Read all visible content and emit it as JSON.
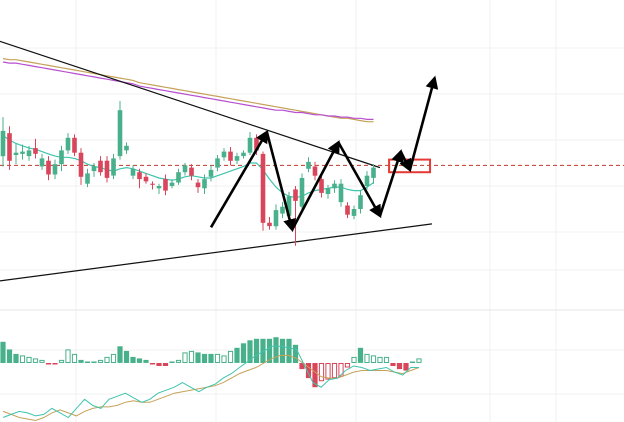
{
  "chart_data": [
    {
      "type": "candlestick",
      "title": "",
      "xlabel": "",
      "ylabel": "",
      "grid": true,
      "legend": "none",
      "colors": {
        "up": "#48b08a",
        "down": "#d9465b",
        "ma_fast": "#3fc4ae",
        "ma_slow_a": "#b64fd0",
        "ma_slow_b": "#c6a25a",
        "trendline": "#111111",
        "reference_line": "#c0392b",
        "annotation_box": "#e53935",
        "arrows": "#000000"
      },
      "candles": [
        {
          "o": -0.6,
          "c": 1.6,
          "h": 2.8,
          "l": -1.5
        },
        {
          "o": 1.4,
          "c": -1.0,
          "h": 2.0,
          "l": -1.8
        },
        {
          "o": -0.5,
          "c": -0.3,
          "h": 0.5,
          "l": -1.3
        },
        {
          "o": -0.4,
          "c": -0.2,
          "h": 0.4,
          "l": -0.9
        },
        {
          "o": -0.6,
          "c": -0.1,
          "h": 0.3,
          "l": -1.0
        },
        {
          "o": 0.1,
          "c": -0.4,
          "h": 0.9,
          "l": -0.8
        },
        {
          "o": -1.5,
          "c": -0.8,
          "h": -0.4,
          "l": -1.8
        },
        {
          "o": -1.0,
          "c": -2.2,
          "h": -0.6,
          "l": -2.7
        },
        {
          "o": -2.2,
          "c": -1.3,
          "h": -0.9,
          "l": -2.6
        },
        {
          "o": -1.3,
          "c": -0.1,
          "h": 0.3,
          "l": -1.9
        },
        {
          "o": -0.1,
          "c": 1.0,
          "h": 1.4,
          "l": -0.4
        },
        {
          "o": 1.0,
          "c": -0.3,
          "h": 1.3,
          "l": -0.6
        },
        {
          "o": -0.3,
          "c": -2.4,
          "h": 0.1,
          "l": -3.1
        },
        {
          "o": -3.0,
          "c": -2.1,
          "h": -1.7,
          "l": -3.3
        },
        {
          "o": -1.9,
          "c": -1.5,
          "h": -1.2,
          "l": -2.4
        },
        {
          "o": -1.0,
          "c": -2.0,
          "h": -0.6,
          "l": -2.3
        },
        {
          "o": -1.0,
          "c": -2.5,
          "h": -0.6,
          "l": -2.9
        },
        {
          "o": -2.3,
          "c": -0.8,
          "h": -0.4,
          "l": -2.6
        },
        {
          "o": -0.6,
          "c": 3.4,
          "h": 4.2,
          "l": -0.9
        },
        {
          "o": -0.1,
          "c": 0.3,
          "h": 0.6,
          "l": -0.4
        },
        {
          "o": -2.3,
          "c": -1.7,
          "h": -1.4,
          "l": -2.6
        },
        {
          "o": -2.0,
          "c": -2.6,
          "h": -1.7,
          "l": -3.4
        },
        {
          "o": -2.4,
          "c": -2.8,
          "h": -2.1,
          "l": -3.0
        },
        {
          "o": -3.0,
          "c": -3.1,
          "h": -2.8,
          "l": -3.5
        },
        {
          "o": -3.4,
          "c": -3.2,
          "h": -3.0,
          "l": -3.9
        },
        {
          "o": -2.6,
          "c": -3.6,
          "h": -2.2,
          "l": -4.0
        },
        {
          "o": -3.2,
          "c": -2.9,
          "h": -2.6,
          "l": -3.4
        },
        {
          "o": -2.9,
          "c": -2.0,
          "h": -1.7,
          "l": -3.1
        },
        {
          "o": -2.0,
          "c": -1.4,
          "h": -1.2,
          "l": -2.3
        },
        {
          "o": -1.6,
          "c": -2.3,
          "h": -1.3,
          "l": -2.7
        },
        {
          "o": -2.9,
          "c": -3.3,
          "h": -2.6,
          "l": -3.8
        },
        {
          "o": -3.4,
          "c": -2.6,
          "h": -2.2,
          "l": -3.9
        },
        {
          "o": -2.4,
          "c": -1.8,
          "h": -1.4,
          "l": -2.8
        },
        {
          "o": -1.6,
          "c": -0.8,
          "h": -0.5,
          "l": -1.9
        },
        {
          "o": -0.7,
          "c": -0.2,
          "h": 0.1,
          "l": -1.0
        },
        {
          "o": -0.2,
          "c": -1.0,
          "h": 0.2,
          "l": -1.4
        },
        {
          "o": -1.0,
          "c": -0.6,
          "h": -0.3,
          "l": -1.3
        },
        {
          "o": -0.6,
          "c": -0.3,
          "h": -0.1,
          "l": -0.8
        },
        {
          "o": -0.3,
          "c": 1.0,
          "h": 1.5,
          "l": -0.5
        },
        {
          "o": 1.0,
          "c": -0.1,
          "h": 1.3,
          "l": -0.5
        },
        {
          "o": -0.4,
          "c": -6.4,
          "h": -0.2,
          "l": -7.1
        },
        {
          "o": -6.4,
          "c": -6.7,
          "h": -5.9,
          "l": -7.0
        },
        {
          "o": -6.7,
          "c": -5.3,
          "h": -4.8,
          "l": -7.0
        },
        {
          "o": -5.6,
          "c": -5.0,
          "h": -4.6,
          "l": -6.0
        },
        {
          "o": -5.8,
          "c": -4.1,
          "h": -3.7,
          "l": -6.2
        },
        {
          "o": -3.5,
          "c": -4.5,
          "h": -3.2,
          "l": -8.4
        },
        {
          "o": -5.0,
          "c": -2.5,
          "h": -2.1,
          "l": -5.4
        },
        {
          "o": -1.7,
          "c": -1.1,
          "h": -0.7,
          "l": -2.0
        },
        {
          "o": -1.5,
          "c": -2.3,
          "h": -1.1,
          "l": -2.7
        },
        {
          "o": -2.6,
          "c": -3.8,
          "h": -2.3,
          "l": -4.2
        },
        {
          "o": -3.9,
          "c": -3.4,
          "h": -3.1,
          "l": -4.3
        },
        {
          "o": -3.4,
          "c": -3.0,
          "h": -2.7,
          "l": -3.8
        },
        {
          "o": -4.6,
          "c": -3.0,
          "h": -2.6,
          "l": -5.0
        },
        {
          "o": -4.9,
          "c": -5.7,
          "h": -4.6,
          "l": -6.0
        },
        {
          "o": -5.8,
          "c": -5.2,
          "h": -4.9,
          "l": -6.1
        },
        {
          "o": -5.2,
          "c": -4.0,
          "h": -3.6,
          "l": -5.6
        },
        {
          "o": -3.2,
          "c": -2.3,
          "h": -1.9,
          "l": -3.5
        },
        {
          "o": -2.5,
          "c": -1.6,
          "h": -1.3,
          "l": -3.0
        }
      ],
      "ma_fast": [
        1.2,
        0.8,
        0.5,
        0.3,
        0.1,
        0.0,
        -0.2,
        -0.4,
        -0.6,
        -0.7,
        -0.7,
        -0.8,
        -1.0,
        -1.3,
        -1.5,
        -1.6,
        -1.8,
        -1.9,
        -1.7,
        -1.6,
        -1.7,
        -1.9,
        -2.1,
        -2.3,
        -2.5,
        -2.6,
        -2.7,
        -2.6,
        -2.4,
        -2.3,
        -2.4,
        -2.5,
        -2.5,
        -2.3,
        -2.1,
        -1.9,
        -1.7,
        -1.5,
        -1.2,
        -1.2,
        -1.8,
        -2.6,
        -3.3,
        -3.8,
        -4.1,
        -4.2,
        -4.1,
        -3.8,
        -3.6,
        -3.5,
        -3.4,
        -3.3,
        -3.3,
        -3.5,
        -3.6,
        -3.6,
        -3.3,
        -2.9
      ],
      "ma_slow_a": [
        7.6,
        7.5,
        7.5,
        7.4,
        7.3,
        7.2,
        7.1,
        7.0,
        6.9,
        6.8,
        6.7,
        6.6,
        6.5,
        6.4,
        6.3,
        6.2,
        6.1,
        6.0,
        5.9,
        5.8,
        5.7,
        5.5,
        5.4,
        5.3,
        5.2,
        5.1,
        5.0,
        4.9,
        4.8,
        4.7,
        4.6,
        4.5,
        4.4,
        4.3,
        4.2,
        4.1,
        4.0,
        3.9,
        3.8,
        3.7,
        3.6,
        3.5,
        3.4,
        3.4,
        3.3,
        3.2,
        3.2,
        3.1,
        3.0,
        3.0,
        2.9,
        2.9,
        2.8,
        2.8,
        2.7,
        2.7,
        2.6,
        2.6
      ],
      "ma_slow_b": [
        7.9,
        7.8,
        7.8,
        7.7,
        7.6,
        7.5,
        7.4,
        7.3,
        7.2,
        7.1,
        7.0,
        6.9,
        6.8,
        6.7,
        6.6,
        6.5,
        6.4,
        6.3,
        6.2,
        6.1,
        6.0,
        5.8,
        5.7,
        5.6,
        5.5,
        5.4,
        5.3,
        5.2,
        5.1,
        5.0,
        4.9,
        4.8,
        4.7,
        4.6,
        4.5,
        4.4,
        4.3,
        4.2,
        4.1,
        4.0,
        3.9,
        3.8,
        3.7,
        3.6,
        3.5,
        3.4,
        3.3,
        3.2,
        3.1,
        3.0,
        2.9,
        2.8,
        2.7,
        2.7,
        2.6,
        2.5,
        2.4,
        2.4
      ],
      "trendlines": [
        {
          "x1": -1,
          "y1": 9.5,
          "x2": 58,
          "y2": -1.6
        },
        {
          "x1": -1,
          "y1": -11.5,
          "x2": 66,
          "y2": -6.5
        }
      ],
      "reference_y": -1.4,
      "annotation_box": {
        "x1": 59.4,
        "y1": -0.9,
        "x2": 65.7,
        "y2": -2.0
      },
      "arrows": [
        {
          "x1": 32,
          "y1": -6.8,
          "x2": 40.6,
          "y2": 1.5
        },
        {
          "x1": 40.6,
          "y1": 1.5,
          "x2": 44.5,
          "y2": -7.0
        },
        {
          "x1": 44.5,
          "y1": -7.0,
          "x2": 51.6,
          "y2": 0.6
        },
        {
          "x1": 51.6,
          "y1": 0.6,
          "x2": 58.0,
          "y2": -5.8
        },
        {
          "x1": 58.0,
          "y1": -5.8,
          "x2": 61.2,
          "y2": -0.2
        },
        {
          "x1": 61.2,
          "y1": -0.2,
          "x2": 62.6,
          "y2": -1.8
        },
        {
          "x1": 62.6,
          "y1": -1.8,
          "x2": 66.4,
          "y2": 6.2
        }
      ],
      "ylim": [
        -14,
        13
      ],
      "xlim": [
        -0.8,
        70.5
      ]
    },
    {
      "type": "histogram",
      "title": "",
      "xlabel": "",
      "ylabel": "",
      "grid": true,
      "legend": "none",
      "colors": {
        "up": "#48b08a",
        "down": "#d9465b",
        "line_a": "#3fc4ae",
        "line_b": "#c6a25a"
      },
      "bars": [
        {
          "v": 1.4,
          "hollow": false
        },
        {
          "v": 0.9,
          "hollow": false
        },
        {
          "v": 0.6,
          "hollow": false
        },
        {
          "v": 0.5,
          "hollow": true
        },
        {
          "v": 0.4,
          "hollow": true
        },
        {
          "v": 0.3,
          "hollow": true
        },
        {
          "v": 0.2,
          "hollow": true
        },
        {
          "v": -0.1,
          "hollow": false
        },
        {
          "v": -0.1,
          "hollow": false
        },
        {
          "v": 0.2,
          "hollow": true
        },
        {
          "v": 0.9,
          "hollow": true
        },
        {
          "v": 0.6,
          "hollow": true
        },
        {
          "v": 0.2,
          "hollow": false
        },
        {
          "v": 0.1,
          "hollow": true
        },
        {
          "v": 0.1,
          "hollow": true
        },
        {
          "v": 0.2,
          "hollow": true
        },
        {
          "v": 0.4,
          "hollow": true
        },
        {
          "v": 0.6,
          "hollow": true
        },
        {
          "v": 1.1,
          "hollow": false
        },
        {
          "v": 0.8,
          "hollow": false
        },
        {
          "v": 0.4,
          "hollow": false
        },
        {
          "v": 0.3,
          "hollow": false
        },
        {
          "v": 0.2,
          "hollow": false
        },
        {
          "v": -0.1,
          "hollow": false
        },
        {
          "v": -0.2,
          "hollow": false
        },
        {
          "v": -0.2,
          "hollow": false
        },
        {
          "v": 0.1,
          "hollow": true
        },
        {
          "v": 0.2,
          "hollow": true
        },
        {
          "v": 0.7,
          "hollow": true
        },
        {
          "v": 0.8,
          "hollow": true
        },
        {
          "v": 0.7,
          "hollow": false
        },
        {
          "v": 0.6,
          "hollow": false
        },
        {
          "v": 0.6,
          "hollow": false
        },
        {
          "v": 0.6,
          "hollow": true
        },
        {
          "v": 0.5,
          "hollow": true
        },
        {
          "v": 0.8,
          "hollow": true
        },
        {
          "v": 1.0,
          "hollow": false
        },
        {
          "v": 1.3,
          "hollow": false
        },
        {
          "v": 1.5,
          "hollow": false
        },
        {
          "v": 1.6,
          "hollow": false
        },
        {
          "v": 1.6,
          "hollow": false
        },
        {
          "v": 1.6,
          "hollow": false
        },
        {
          "v": 1.7,
          "hollow": false
        },
        {
          "v": 1.6,
          "hollow": false
        },
        {
          "v": 1.6,
          "hollow": false
        },
        {
          "v": 1.2,
          "hollow": false
        },
        {
          "v": -0.4,
          "hollow": false
        },
        {
          "v": -1.0,
          "hollow": false
        },
        {
          "v": -1.6,
          "hollow": false
        },
        {
          "v": -1.2,
          "hollow": true
        },
        {
          "v": -1.1,
          "hollow": true
        },
        {
          "v": -1.0,
          "hollow": true
        },
        {
          "v": -0.9,
          "hollow": true
        },
        {
          "v": -0.3,
          "hollow": true
        },
        {
          "v": 0.4,
          "hollow": true
        },
        {
          "v": 1.0,
          "hollow": false
        },
        {
          "v": 0.6,
          "hollow": true
        },
        {
          "v": 0.5,
          "hollow": true
        },
        {
          "v": 0.4,
          "hollow": true
        },
        {
          "v": 0.4,
          "hollow": true
        },
        {
          "v": -0.2,
          "hollow": false
        },
        {
          "v": -0.4,
          "hollow": false
        },
        {
          "v": -0.5,
          "hollow": false
        },
        {
          "v": 0.1,
          "hollow": true
        },
        {
          "v": 0.3,
          "hollow": true
        }
      ],
      "line_a": [
        -3.6,
        -3.4,
        -3.2,
        -3.3,
        -3.5,
        -3.4,
        -3.0,
        -3.3,
        -3.6,
        -3.0,
        -2.4,
        -2.8,
        -3.0,
        -2.4,
        -2.2,
        -2.0,
        -2.3,
        -2.6,
        -2.4,
        -2.0,
        -1.8,
        -1.6,
        -1.3,
        -1.6,
        -1.9,
        -1.6,
        -1.4,
        -1.0,
        -0.7,
        -0.3,
        0.1,
        0.5,
        0.8,
        1.1,
        1.1,
        1.0,
        0.9,
        -0.2,
        -1.3,
        -1.6,
        -1.1,
        -1.0,
        -0.5,
        -0.2,
        -0.3,
        -0.5,
        -0.4,
        -0.3,
        -0.6,
        -0.8,
        -0.3,
        -0.3
      ],
      "line_b": [
        -3.2,
        -3.4,
        -3.6,
        -3.7,
        -3.8,
        -3.6,
        -3.3,
        -3.1,
        -3.3,
        -3.5,
        -3.2,
        -3.0,
        -2.9,
        -2.9,
        -2.8,
        -2.6,
        -2.5,
        -2.6,
        -2.6,
        -2.4,
        -2.2,
        -2.0,
        -1.9,
        -1.8,
        -1.7,
        -1.6,
        -1.5,
        -1.3,
        -1.0,
        -0.7,
        -0.5,
        -0.3,
        0.0,
        0.3,
        0.5,
        0.5,
        0.3,
        -0.1,
        -0.5,
        -0.9,
        -1.0,
        -1.0,
        -0.8,
        -0.6,
        -0.5,
        -0.5,
        -0.5,
        -0.5,
        -0.6,
        -0.7,
        -0.5,
        -0.3
      ],
      "ylim": [
        -3.9,
        3.5
      ]
    }
  ]
}
